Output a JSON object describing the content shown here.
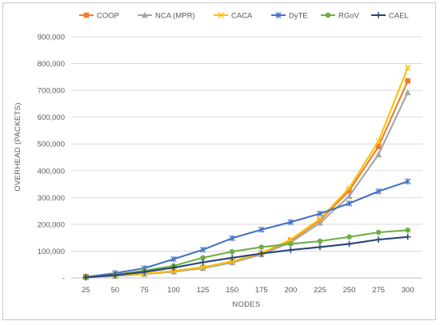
{
  "chart_data": {
    "type": "line",
    "title": "",
    "xlabel": "NODES",
    "ylabel": "OVERHEAD (PACKETS)",
    "categories": [
      "25",
      "50",
      "75",
      "100",
      "125",
      "150",
      "175",
      "200",
      "225",
      "250",
      "275",
      "300"
    ],
    "ylim": [
      0,
      900000
    ],
    "yticks": [
      0,
      100000,
      200000,
      300000,
      400000,
      500000,
      600000,
      700000,
      800000,
      900000
    ],
    "ytick_labels": [
      "-",
      "100,000",
      "200,000",
      "300,000",
      "400,000",
      "500,000",
      "600,000",
      "700,000",
      "800,000",
      "900,000"
    ],
    "grid": "horizontal",
    "legend": "top",
    "series": [
      {
        "name": "COOP",
        "color": "#ED7D31",
        "marker": "square",
        "values": [
          5000,
          8000,
          15000,
          25000,
          38000,
          60000,
          90000,
          140000,
          215000,
          325000,
          490000,
          735000
        ]
      },
      {
        "name": "NCA (MPR)",
        "color": "#A5A5A5",
        "marker": "triangle",
        "values": [
          4000,
          7000,
          14000,
          23000,
          36000,
          57000,
          87000,
          133000,
          205000,
          305000,
          460000,
          692000
        ]
      },
      {
        "name": "CACA",
        "color": "#FFC000",
        "marker": "x",
        "values": [
          5000,
          9000,
          16000,
          26000,
          40000,
          62000,
          93000,
          143000,
          220000,
          335000,
          510000,
          785000
        ]
      },
      {
        "name": "DyTE",
        "color": "#4472C4",
        "marker": "star",
        "values": [
          3000,
          18000,
          36000,
          70000,
          105000,
          148000,
          180000,
          208000,
          240000,
          278000,
          323000,
          360000
        ]
      },
      {
        "name": "RGoV",
        "color": "#70AD47",
        "marker": "circle",
        "values": [
          2000,
          12000,
          27000,
          45000,
          75000,
          98000,
          115000,
          127000,
          137000,
          153000,
          170000,
          178000
        ]
      },
      {
        "name": "CAEL",
        "color": "#264478",
        "marker": "plus",
        "values": [
          2000,
          10000,
          22000,
          38000,
          58000,
          75000,
          91000,
          104000,
          115000,
          127000,
          143000,
          153000
        ]
      }
    ]
  }
}
